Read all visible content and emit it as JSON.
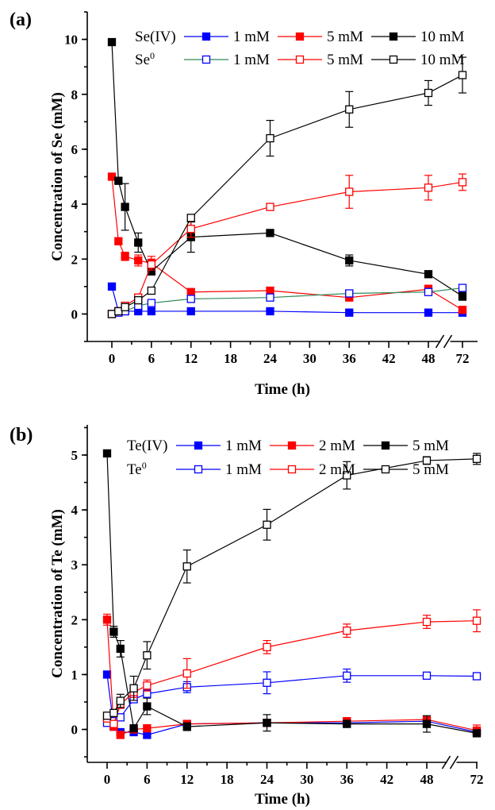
{
  "chart_data": [
    {
      "type": "line",
      "panel_label": "(a)",
      "xlabel": "Time (h)",
      "ylabel": "Concentration of Se (mM)",
      "xticks": [
        "0",
        "6",
        "12",
        "18",
        "24",
        "30",
        "36",
        "42",
        "48",
        "72"
      ],
      "xtick_values": [
        0,
        6,
        12,
        18,
        24,
        30,
        36,
        42,
        48,
        72
      ],
      "yticks": [
        "0",
        "2",
        "4",
        "6",
        "8",
        "10"
      ],
      "ylim": [
        -1,
        11
      ],
      "axis_break": "48-72",
      "legend_rows": [
        {
          "label": "Se(IV)",
          "sup": "",
          "series": [
            0,
            1,
            2
          ]
        },
        {
          "label": "Se",
          "sup": "0",
          "series": [
            3,
            4,
            5
          ]
        }
      ],
      "series": [
        {
          "name": "1 mM",
          "color": "#0000ff",
          "marker": "filled-square",
          "x": [
            0,
            1,
            2,
            4,
            6,
            12,
            24,
            36,
            48,
            72
          ],
          "y": [
            1.0,
            0.1,
            0.1,
            0.1,
            0.1,
            0.1,
            0.1,
            0.05,
            0.05,
            0.05
          ],
          "err": [
            0,
            0,
            0,
            0,
            0,
            0,
            0,
            0,
            0,
            0
          ]
        },
        {
          "name": "5 mM",
          "color": "#ff0000",
          "marker": "filled-square",
          "x": [
            0,
            1,
            2,
            4,
            6,
            12,
            24,
            36,
            48,
            72
          ],
          "y": [
            5.0,
            2.65,
            2.1,
            1.95,
            1.85,
            0.8,
            0.85,
            0.6,
            0.9,
            0.15
          ],
          "err": [
            0,
            0,
            0.15,
            0.2,
            0.25,
            0,
            0.05,
            0,
            0.15,
            0
          ]
        },
        {
          "name": "10 mM",
          "color": "#000000",
          "marker": "filled-square",
          "x": [
            0,
            1,
            2,
            4,
            6,
            12,
            24,
            36,
            48,
            72
          ],
          "y": [
            9.9,
            4.85,
            3.9,
            2.6,
            1.55,
            2.8,
            2.95,
            1.95,
            1.45,
            0.65
          ],
          "err": [
            0,
            0,
            0.85,
            0.35,
            0.1,
            0.55,
            0,
            0.2,
            0,
            0.15
          ]
        },
        {
          "name": "1 mM",
          "color": "#0000ff",
          "line": "#2e8b57",
          "marker": "open-square",
          "x": [
            0,
            1,
            2,
            4,
            6,
            12,
            24,
            36,
            48,
            72
          ],
          "y": [
            0.0,
            0.05,
            0.1,
            0.3,
            0.4,
            0.55,
            0.6,
            0.75,
            0.8,
            0.95
          ],
          "err": [
            0,
            0,
            0,
            0,
            0,
            0,
            0,
            0.1,
            0.1,
            0.05
          ]
        },
        {
          "name": "5 mM",
          "color": "#ff0000",
          "marker": "open-square",
          "x": [
            0,
            1,
            2,
            4,
            6,
            12,
            24,
            36,
            48,
            72
          ],
          "y": [
            0.0,
            0.1,
            0.3,
            0.6,
            1.8,
            3.1,
            3.9,
            4.45,
            4.6,
            4.8
          ],
          "err": [
            0,
            0,
            0,
            0.1,
            0.2,
            0.3,
            0.1,
            0.6,
            0.45,
            0.3
          ]
        },
        {
          "name": "10 mM",
          "color": "#000000",
          "marker": "open-square",
          "x": [
            0,
            1,
            2,
            4,
            6,
            12,
            24,
            36,
            48,
            72
          ],
          "y": [
            0.0,
            0.1,
            0.25,
            0.5,
            0.85,
            3.5,
            6.4,
            7.45,
            8.05,
            8.7
          ],
          "err": [
            0,
            0,
            0,
            0.1,
            0.1,
            0.1,
            0.65,
            0.65,
            0.45,
            0.65
          ]
        }
      ]
    },
    {
      "type": "line",
      "panel_label": "(b)",
      "xlabel": "Time (h)",
      "ylabel": "Concentration of Te (mM)",
      "xticks": [
        "0",
        "6",
        "12",
        "18",
        "24",
        "30",
        "36",
        "42",
        "48",
        "72"
      ],
      "xtick_values": [
        0,
        6,
        12,
        18,
        24,
        30,
        36,
        42,
        48,
        72
      ],
      "yticks": [
        "0",
        "1",
        "2",
        "3",
        "4",
        "5"
      ],
      "ylim": [
        -0.6,
        5.55
      ],
      "axis_break": "48-72",
      "legend_rows": [
        {
          "label": "Te(IV)",
          "sup": "",
          "series": [
            0,
            1,
            2
          ]
        },
        {
          "label": "Te",
          "sup": "0",
          "series": [
            3,
            4,
            5
          ]
        }
      ],
      "series": [
        {
          "name": "1 mM",
          "color": "#0000ff",
          "marker": "filled-square",
          "x": [
            0,
            1,
            2,
            4,
            6,
            12,
            24,
            36,
            48,
            72
          ],
          "y": [
            1.0,
            0.05,
            -0.05,
            -0.05,
            -0.1,
            0.1,
            0.12,
            0.12,
            0.15,
            -0.05
          ],
          "err": [
            0,
            0,
            0,
            0,
            0,
            0,
            0,
            0,
            0,
            0
          ]
        },
        {
          "name": "2 mM",
          "color": "#ff0000",
          "marker": "filled-square",
          "x": [
            0,
            1,
            2,
            4,
            6,
            12,
            24,
            36,
            48,
            72
          ],
          "y": [
            2.0,
            0.05,
            -0.1,
            0.0,
            0.02,
            0.1,
            0.12,
            0.15,
            0.18,
            -0.02
          ],
          "err": [
            0.1,
            0,
            0,
            0,
            0,
            0,
            0,
            0,
            0,
            0.1
          ]
        },
        {
          "name": "5 mM",
          "color": "#000000",
          "marker": "filled-square",
          "x": [
            0,
            1,
            2,
            4,
            6,
            12,
            24,
            36,
            48,
            72
          ],
          "y": [
            5.03,
            1.78,
            1.47,
            0.02,
            0.42,
            0.05,
            0.12,
            0.1,
            0.1,
            -0.07
          ],
          "err": [
            0,
            0.1,
            0.15,
            0,
            0.15,
            0.07,
            0.15,
            0.05,
            0.15,
            0.05
          ]
        },
        {
          "name": "1 mM",
          "color": "#0000ff",
          "marker": "open-square",
          "x": [
            0,
            1,
            2,
            4,
            6,
            12,
            24,
            36,
            48,
            72
          ],
          "y": [
            0.12,
            0.15,
            0.22,
            0.55,
            0.65,
            0.77,
            0.85,
            0.98,
            0.98,
            0.97
          ],
          "err": [
            0,
            0,
            0,
            0,
            0,
            0.1,
            0.2,
            0.12,
            0.05,
            0.05
          ]
        },
        {
          "name": "2 mM",
          "color": "#ff0000",
          "marker": "open-square",
          "x": [
            0,
            1,
            2,
            4,
            6,
            12,
            24,
            36,
            48,
            72
          ],
          "y": [
            0.2,
            0.1,
            0.45,
            0.68,
            0.8,
            1.02,
            1.5,
            1.8,
            1.96,
            1.98
          ],
          "err": [
            0,
            0,
            0,
            0.1,
            0.1,
            0.27,
            0.12,
            0.12,
            0.12,
            0.2
          ]
        },
        {
          "name": "5 mM",
          "color": "#000000",
          "marker": "open-square",
          "x": [
            0,
            1,
            2,
            4,
            6,
            12,
            24,
            36,
            48,
            72
          ],
          "y": [
            0.25,
            0.3,
            0.52,
            0.75,
            1.35,
            2.97,
            3.73,
            4.63,
            4.9,
            4.93
          ],
          "err": [
            0,
            0,
            0.12,
            0.22,
            0.25,
            0.3,
            0.28,
            0.25,
            0.07,
            0.1
          ]
        }
      ]
    }
  ]
}
